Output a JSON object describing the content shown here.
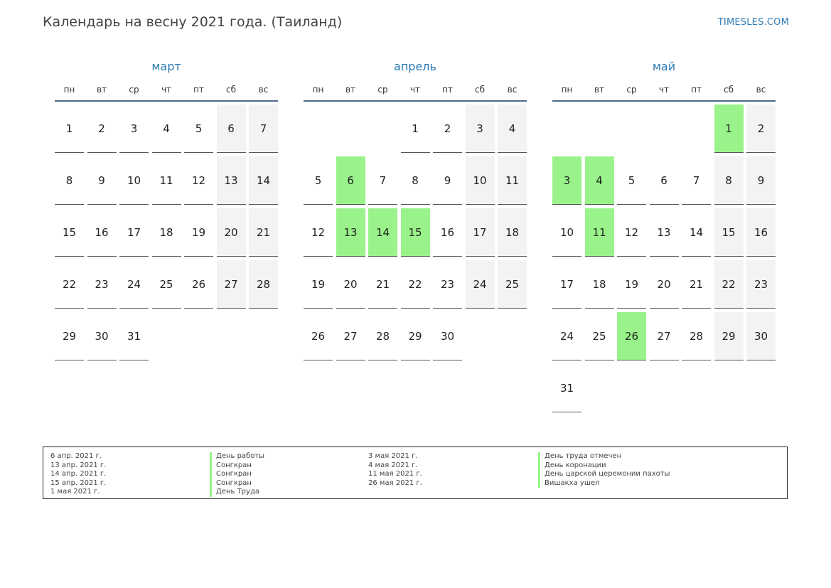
{
  "header": {
    "title": "Календарь на весну 2021 года. (Таиланд)",
    "site": "TIMESLES.COM"
  },
  "weekdays": [
    "пн",
    "вт",
    "ср",
    "чт",
    "пт",
    "сб",
    "вс"
  ],
  "colors": {
    "holiday": "#99f38a",
    "weekend": "#f3f3f3",
    "month_title": "#2e7bb5"
  },
  "months": [
    {
      "name": "март",
      "start_offset": 0,
      "days": 31,
      "holidays": []
    },
    {
      "name": "апрель",
      "start_offset": 3,
      "days": 30,
      "holidays": [
        6,
        13,
        14,
        15
      ]
    },
    {
      "name": "май",
      "start_offset": 5,
      "days": 31,
      "holidays": [
        1,
        3,
        4,
        11,
        26
      ]
    }
  ],
  "legend": {
    "left_dates": [
      "6 апр. 2021 г.",
      "13 апр. 2021 г.",
      "14 апр. 2021 г.",
      "15 апр. 2021 г.",
      "1 мая 2021 г."
    ],
    "left_names": [
      "День работы",
      "Сонгкран",
      "Сонгкран",
      "Сонгкран",
      "День Труда"
    ],
    "right_dates": [
      "3 мая 2021 г.",
      "4 мая 2021 г.",
      "11 мая 2021 г.",
      "26 мая 2021 г."
    ],
    "right_names": [
      "День труда отмечен",
      "День коронации",
      "День царской церемонии пахоты",
      "Вишакха ушел"
    ]
  }
}
